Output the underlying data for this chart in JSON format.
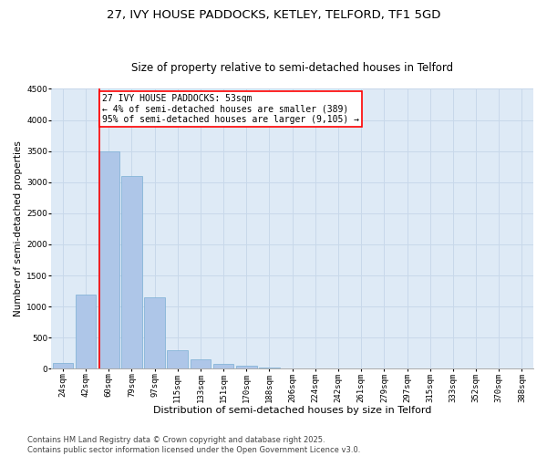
{
  "title": "27, IVY HOUSE PADDOCKS, KETLEY, TELFORD, TF1 5GD",
  "subtitle": "Size of property relative to semi-detached houses in Telford",
  "xlabel": "Distribution of semi-detached houses by size in Telford",
  "ylabel": "Number of semi-detached properties",
  "categories": [
    "24sqm",
    "42sqm",
    "60sqm",
    "79sqm",
    "97sqm",
    "115sqm",
    "133sqm",
    "151sqm",
    "170sqm",
    "188sqm",
    "206sqm",
    "224sqm",
    "242sqm",
    "261sqm",
    "279sqm",
    "297sqm",
    "315sqm",
    "333sqm",
    "352sqm",
    "370sqm",
    "388sqm"
  ],
  "values": [
    100,
    1200,
    3500,
    3100,
    1150,
    300,
    150,
    75,
    50,
    20,
    5,
    3,
    0,
    0,
    0,
    0,
    0,
    0,
    0,
    0,
    0
  ],
  "bar_color": "#aec6e8",
  "bar_edge_color": "#7aaed4",
  "grid_color": "#c8d8ea",
  "background_color": "#deeaf6",
  "vline_x": 1.5,
  "vline_color": "red",
  "annotation_text": "27 IVY HOUSE PADDOCKS: 53sqm\n← 4% of semi-detached houses are smaller (389)\n95% of semi-detached houses are larger (9,105) →",
  "annotation_box_color": "white",
  "annotation_box_edge_color": "red",
  "ylim": [
    0,
    4500
  ],
  "yticks": [
    0,
    500,
    1000,
    1500,
    2000,
    2500,
    3000,
    3500,
    4000,
    4500
  ],
  "footnote": "Contains HM Land Registry data © Crown copyright and database right 2025.\nContains public sector information licensed under the Open Government Licence v3.0.",
  "title_fontsize": 9.5,
  "subtitle_fontsize": 8.5,
  "xlabel_fontsize": 8,
  "ylabel_fontsize": 7.5,
  "tick_fontsize": 6.5,
  "annotation_fontsize": 7,
  "footnote_fontsize": 6
}
